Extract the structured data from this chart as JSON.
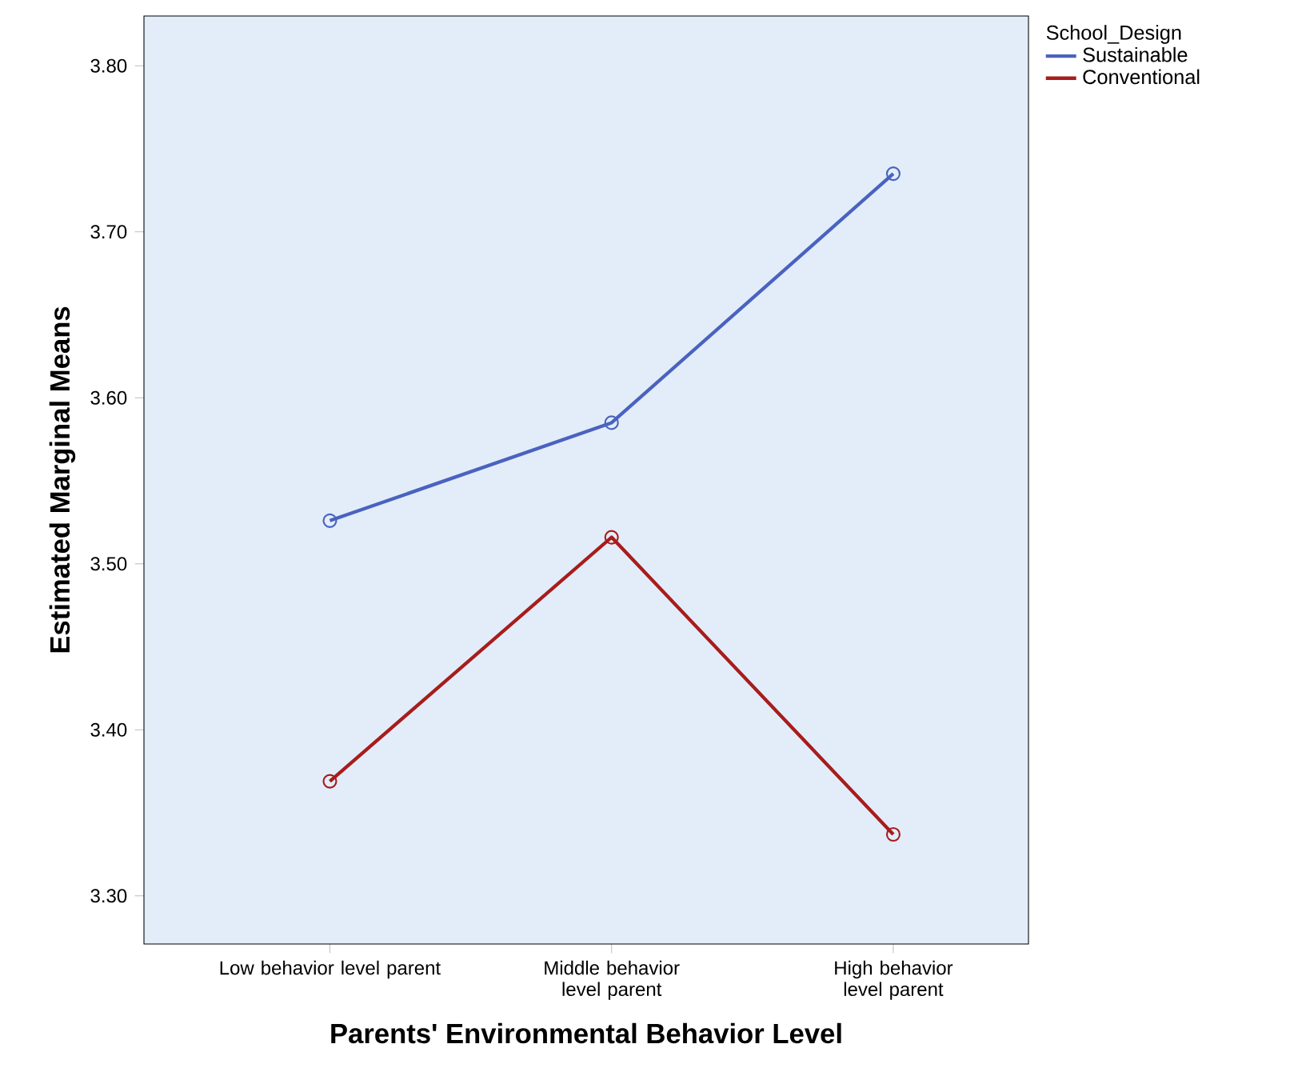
{
  "chart_data": {
    "type": "line",
    "xlabel": "Parents' Environmental Behavior Level",
    "ylabel": "Estimated Marginal Means",
    "legend_title": "School_Design",
    "categories": [
      "Low behavior level parent",
      "Middle behavior level parent",
      "High behavior level parent"
    ],
    "series": [
      {
        "name": "Sustainable",
        "color": "#4a62bf",
        "values": [
          3.526,
          3.585,
          3.735
        ]
      },
      {
        "name": "Conventional",
        "color": "#a81c1c",
        "values": [
          3.369,
          3.516,
          3.337
        ]
      }
    ],
    "ylim": [
      3.271,
      3.83
    ],
    "yticks": [
      {
        "value": 3.3,
        "label": "3.30"
      },
      {
        "value": 3.4,
        "label": "3.40"
      },
      {
        "value": 3.5,
        "label": "3.50"
      },
      {
        "value": 3.6,
        "label": "3.60"
      },
      {
        "value": 3.7,
        "label": "3.70"
      },
      {
        "value": 3.8,
        "label": "3.80"
      }
    ],
    "grid": false,
    "legend": "top right",
    "marker": "circle",
    "line_style": "solid"
  }
}
